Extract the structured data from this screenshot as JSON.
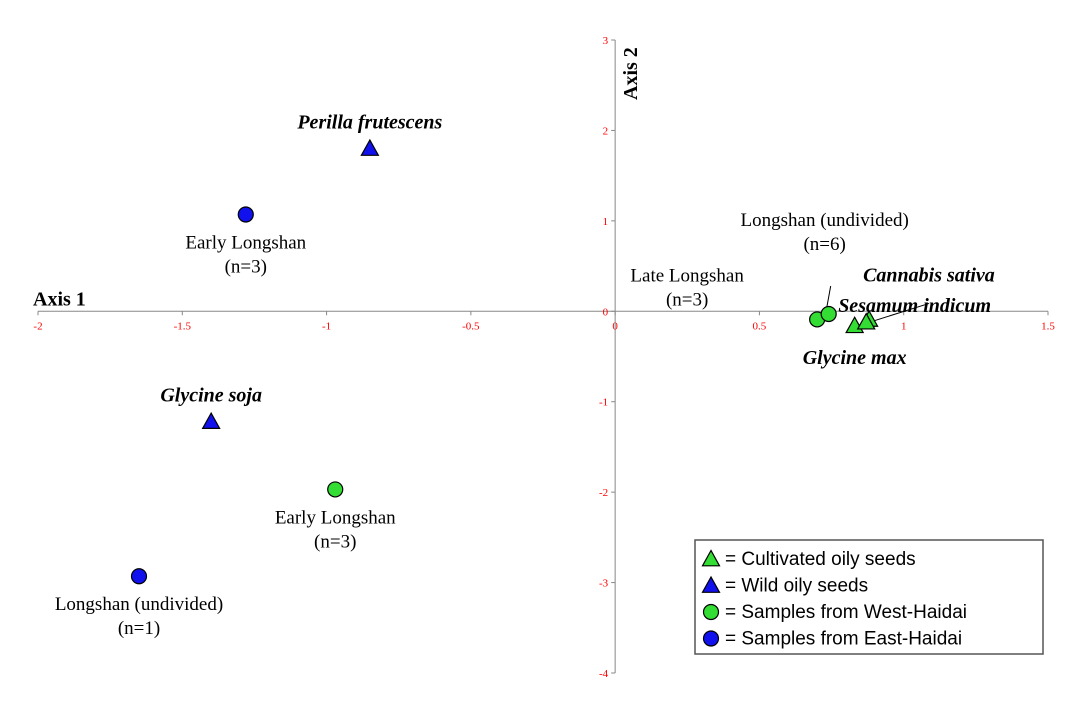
{
  "chart_data": {
    "type": "scatter",
    "xlabel": "Axis 1",
    "ylabel": "Axis 2",
    "xlim": [
      -2,
      1.5
    ],
    "ylim": [
      -4,
      3
    ],
    "xticks": [
      "-2",
      "-1.5",
      "-1",
      "-0.5",
      "0",
      "0.5",
      "1",
      "1.5"
    ],
    "yticks": [
      "3",
      "2",
      "1",
      "0",
      "-1",
      "-2",
      "-3",
      "-4"
    ],
    "grid": false,
    "tick_color": "#ff0000",
    "legend": {
      "placement": "bottom-right",
      "items": [
        {
          "marker": "triangle",
          "color": "#33dd33",
          "label": "= Cultivated oily seeds"
        },
        {
          "marker": "triangle",
          "color": "#1111ee",
          "label": "= Wild oily seeds"
        },
        {
          "marker": "circle",
          "color": "#33dd33",
          "label": "= Samples from West-Haidai"
        },
        {
          "marker": "circle",
          "color": "#1111ee",
          "label": "= Samples from East-Haidai"
        }
      ]
    },
    "points": [
      {
        "x": -0.85,
        "y": 1.8,
        "marker": "triangle",
        "color": "#1111ee",
        "label": [
          "Perilla frutescens"
        ],
        "style": "species",
        "label_anchor": "middle",
        "label_dx": 0,
        "label_dy": -20
      },
      {
        "x": -1.4,
        "y": -1.22,
        "marker": "triangle",
        "color": "#1111ee",
        "label": [
          "Glycine soja"
        ],
        "style": "species",
        "label_anchor": "middle",
        "label_dx": 0,
        "label_dy": -20
      },
      {
        "x": 0.83,
        "y": -0.16,
        "marker": "triangle",
        "color": "#33dd33",
        "label": [
          "Glycine max"
        ],
        "style": "species",
        "label_anchor": "middle",
        "label_dx": 0,
        "label_dy": 38
      },
      {
        "x": 0.88,
        "y": -0.09,
        "marker": "triangle",
        "color": "#33dd33",
        "label": [
          "Cannabis sativa"
        ],
        "style": "species",
        "label_anchor": "start",
        "label_dx": -6,
        "label_dy": -38
      },
      {
        "x": 0.87,
        "y": -0.12,
        "marker": "triangle",
        "color": "#33dd33",
        "label": [
          "Sesamum indicum"
        ],
        "style": "species",
        "label_anchor": "start",
        "label_dx": -28,
        "label_dy": -10
      },
      {
        "x": -1.28,
        "y": 1.07,
        "marker": "circle",
        "color": "#1111ee",
        "label": [
          "Early Longshan",
          "(n=3)"
        ],
        "style": "sample",
        "label_anchor": "middle",
        "label_dx": 0,
        "label_dy": 34
      },
      {
        "x": -1.65,
        "y": -2.93,
        "marker": "circle",
        "color": "#1111ee",
        "label": [
          "Longshan (undivided)",
          "(n=1)"
        ],
        "style": "sample",
        "label_anchor": "middle",
        "label_dx": 0,
        "label_dy": 34
      },
      {
        "x": -0.97,
        "y": -1.97,
        "marker": "circle",
        "color": "#33dd33",
        "label": [
          "Early Longshan",
          "(n=3)"
        ],
        "style": "sample",
        "label_anchor": "middle",
        "label_dx": 0,
        "label_dy": 34
      },
      {
        "x": 0.7,
        "y": -0.09,
        "marker": "circle",
        "color": "#33dd33",
        "label": [
          "Late Longshan",
          "(n=3)"
        ],
        "style": "sample",
        "label_anchor": "middle",
        "label_dx": -130,
        "label_dy": -38
      },
      {
        "x": 0.74,
        "y": -0.03,
        "marker": "circle",
        "color": "#33dd33",
        "label": [
          "Longshan (undivided)",
          "(n=6)"
        ],
        "style": "sample",
        "label_anchor": "middle",
        "label_dx": -4,
        "label_dy": -88
      }
    ]
  }
}
